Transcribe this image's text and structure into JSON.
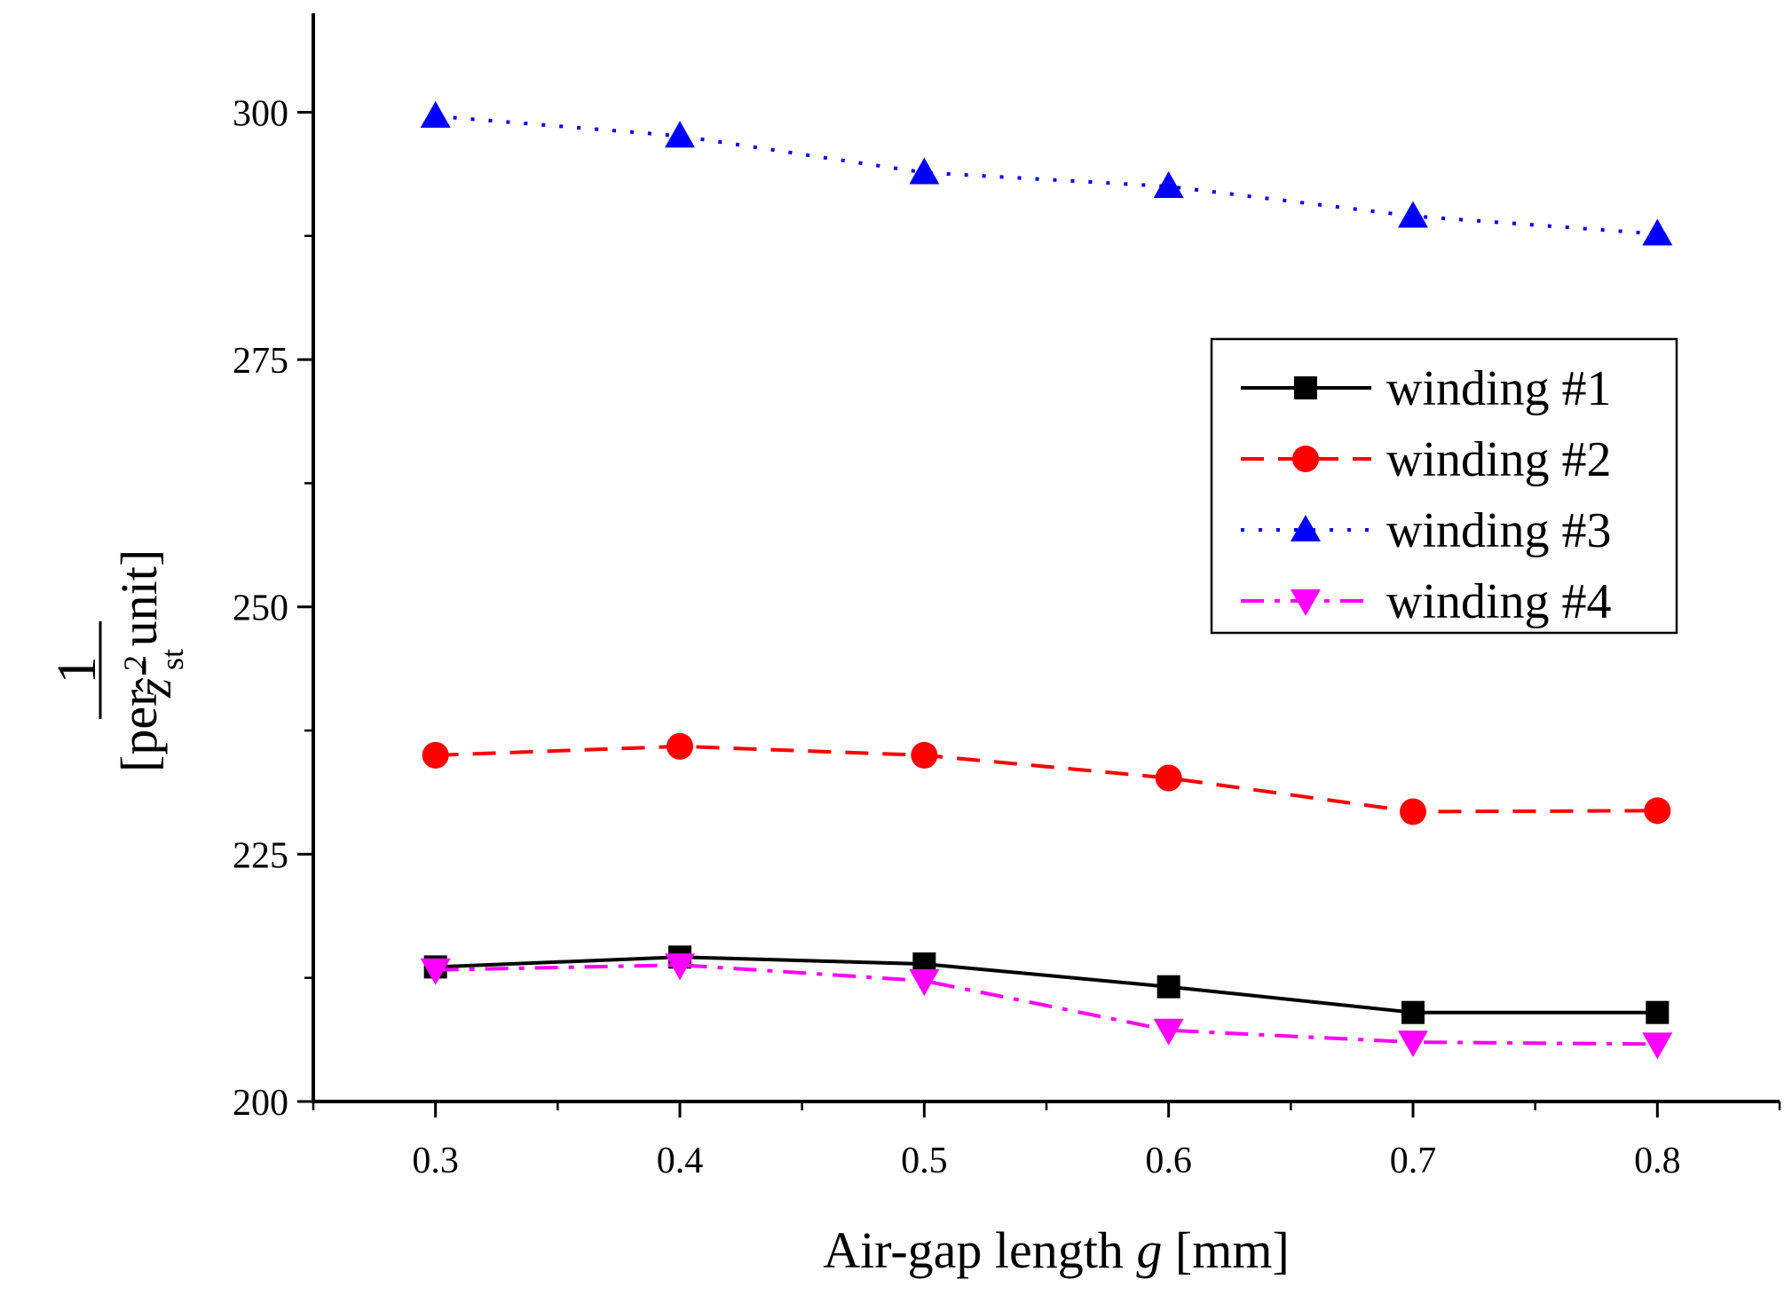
{
  "chart_data": {
    "type": "line",
    "title": "",
    "xlabel": "Air-gap length g [mm]",
    "xlabel_parts": {
      "before": "Air-gap length ",
      "var": "g",
      "after": " [mm]"
    },
    "ylabel": "1/ẑ_st² [per - unit]",
    "ylabel_parts": {
      "numerator": "1",
      "symbol": "ẑ",
      "superscript": "2",
      "subscript": "st",
      "unit": "[per - unit]"
    },
    "xlim": [
      0.25,
      0.85
    ],
    "ylim": [
      200,
      310
    ],
    "x": [
      0.3,
      0.4,
      0.5,
      0.6,
      0.7,
      0.8
    ],
    "xticks": [
      "0.3",
      "0.4",
      "0.5",
      "0.6",
      "0.7",
      "0.8"
    ],
    "yticks": [
      "200",
      "225",
      "250",
      "275",
      "300"
    ],
    "grid": false,
    "legend_position": "center-right",
    "series": [
      {
        "name": "winding #1",
        "color": "#000000",
        "dash": "solid",
        "marker": "square",
        "values": [
          213.6,
          214.6,
          213.9,
          211.6,
          209.0,
          209.0
        ]
      },
      {
        "name": "winding #2",
        "color": "#ff0000",
        "dash": "dash",
        "marker": "circle",
        "values": [
          235.0,
          235.9,
          235.0,
          232.7,
          229.3,
          229.4
        ]
      },
      {
        "name": "winding #3",
        "color": "#0000ff",
        "dash": "dot",
        "marker": "triangle-up",
        "values": [
          299.6,
          297.6,
          293.9,
          292.5,
          289.5,
          287.7
        ]
      },
      {
        "name": "winding #4",
        "color": "#ff00ff",
        "dash": "dashdot",
        "marker": "triangle-down",
        "values": [
          213.3,
          213.8,
          212.2,
          207.2,
          206.0,
          205.8
        ]
      }
    ]
  }
}
